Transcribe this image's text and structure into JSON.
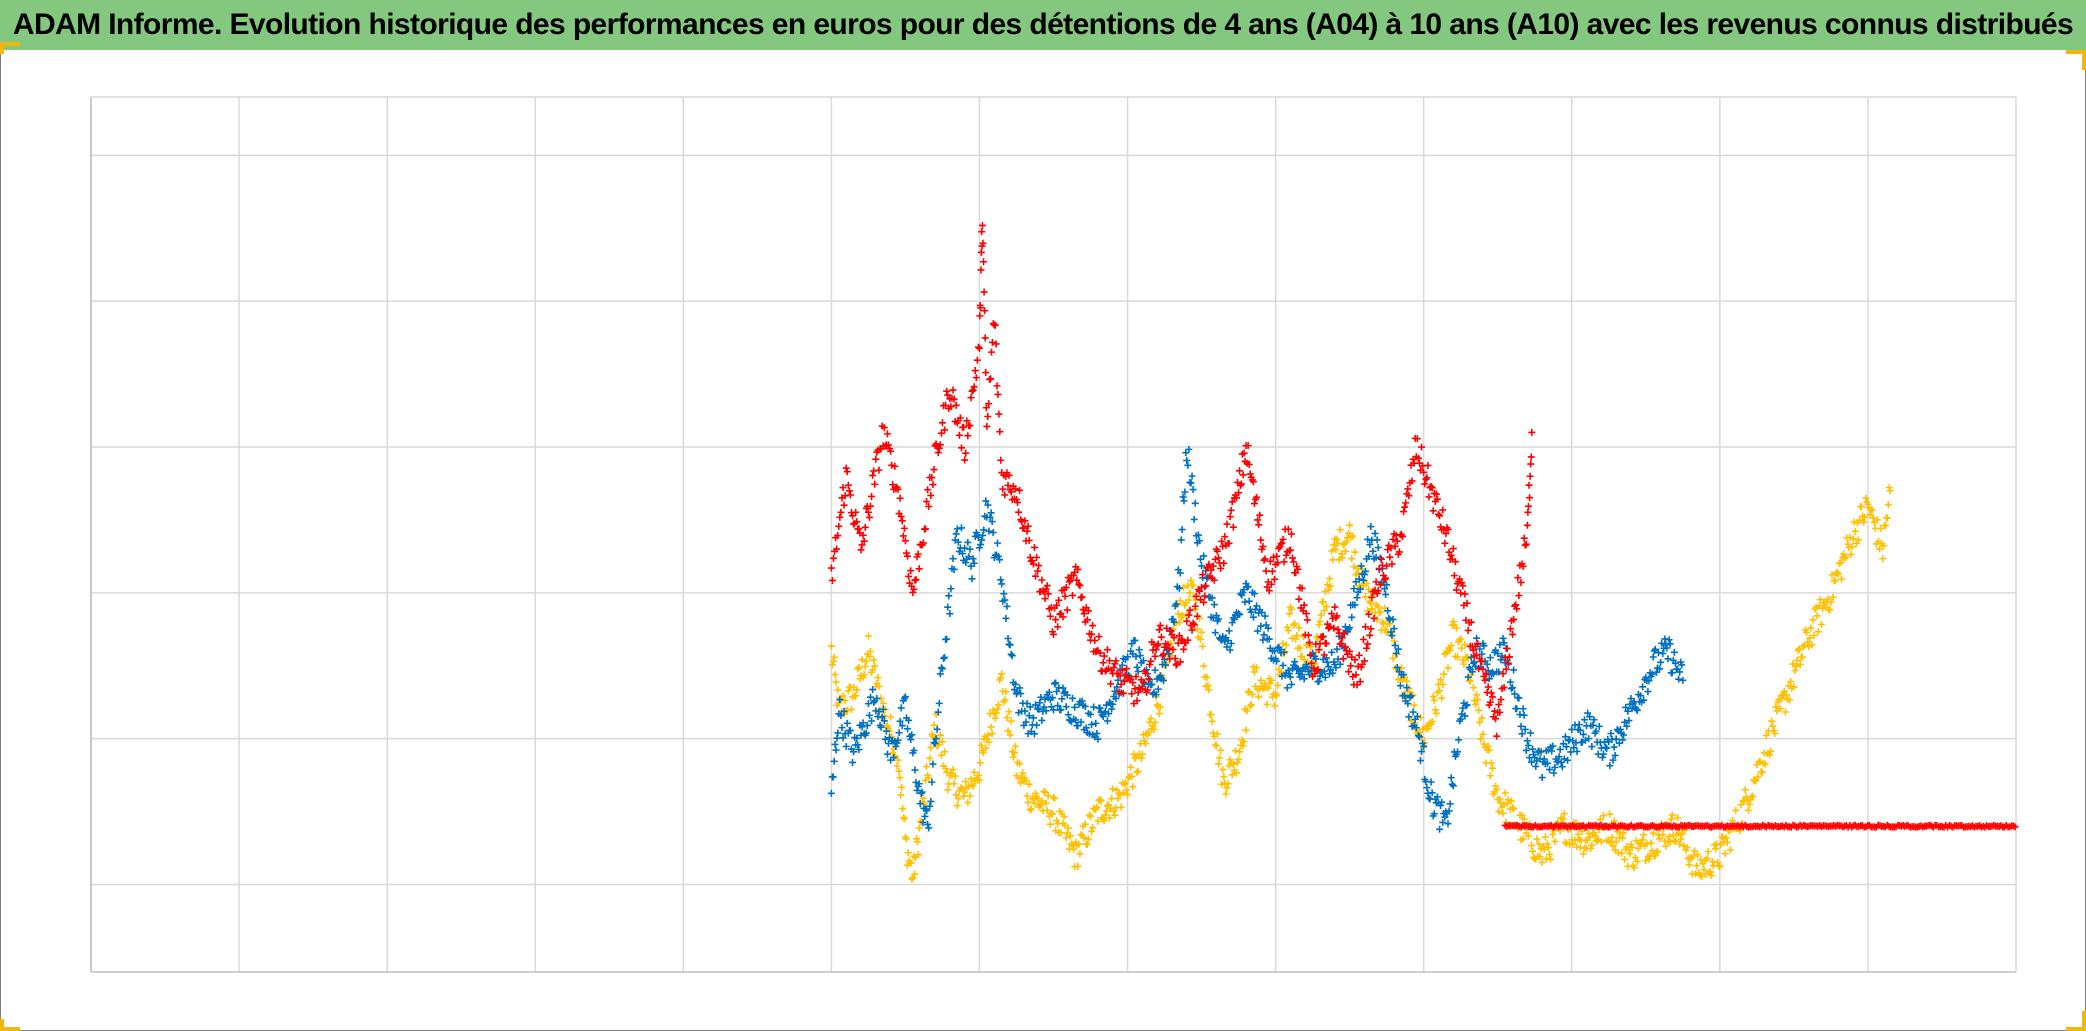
{
  "title": "ADAM Informe. Evolution historique des performances en euros pour des détentions de 4 ans (A04) à 10 ans (A10) avec les revenus connus distribués",
  "colors": {
    "title_bg": "#84c77f",
    "accent_corner": "#f2b70f",
    "grid": "#d9d9d9",
    "axis": "#bfbfbf"
  },
  "chart_data": {
    "type": "scatter",
    "marker": "plus",
    "grid": true,
    "legend": "none",
    "x_gridlines": 13,
    "y_gridlines": [
      0,
      1,
      2,
      3,
      4,
      5
    ],
    "xlim": [
      0,
      13
    ],
    "ylim": [
      -0.6,
      5.4
    ],
    "series": [
      {
        "color": "#ff0000",
        "points": [
          [
            5.0,
            2.1
          ],
          [
            5.1,
            2.8
          ],
          [
            5.2,
            2.3
          ],
          [
            5.35,
            3.1
          ],
          [
            5.45,
            2.7
          ],
          [
            5.55,
            2.0
          ],
          [
            5.7,
            2.9
          ],
          [
            5.8,
            3.4
          ],
          [
            5.9,
            3.0
          ],
          [
            6.0,
            3.7
          ],
          [
            6.02,
            4.6
          ],
          [
            6.05,
            3.1
          ],
          [
            6.1,
            3.9
          ],
          [
            6.15,
            2.8
          ],
          [
            6.25,
            2.7
          ],
          [
            6.35,
            2.3
          ],
          [
            6.5,
            1.8
          ],
          [
            6.65,
            2.1
          ],
          [
            6.8,
            1.6
          ],
          [
            6.95,
            1.4
          ],
          [
            7.1,
            1.3
          ],
          [
            7.2,
            1.7
          ],
          [
            7.35,
            1.6
          ],
          [
            7.5,
            2.0
          ],
          [
            7.65,
            2.3
          ],
          [
            7.75,
            2.7
          ],
          [
            7.8,
            3.0
          ],
          [
            7.95,
            2.1
          ],
          [
            8.1,
            2.4
          ],
          [
            8.25,
            1.5
          ],
          [
            8.4,
            1.8
          ],
          [
            8.55,
            1.4
          ],
          [
            8.7,
            2.1
          ],
          [
            8.85,
            2.4
          ],
          [
            8.95,
            3.0
          ],
          [
            9.05,
            2.7
          ],
          [
            9.15,
            2.4
          ],
          [
            9.25,
            2.0
          ],
          [
            9.4,
            1.4
          ],
          [
            9.5,
            1.1
          ],
          [
            9.6,
            1.8
          ],
          [
            9.7,
            2.4
          ],
          [
            9.73,
            3.1
          ]
        ]
      },
      {
        "color": "#0070c0",
        "points": [
          [
            5.0,
            0.6
          ],
          [
            5.05,
            1.2
          ],
          [
            5.15,
            0.9
          ],
          [
            5.3,
            1.3
          ],
          [
            5.4,
            0.9
          ],
          [
            5.5,
            1.2
          ],
          [
            5.6,
            0.6
          ],
          [
            5.65,
            0.4
          ],
          [
            5.75,
            1.5
          ],
          [
            5.85,
            2.4
          ],
          [
            5.95,
            2.2
          ],
          [
            6.05,
            2.6
          ],
          [
            6.15,
            2.1
          ],
          [
            6.25,
            1.3
          ],
          [
            6.35,
            1.1
          ],
          [
            6.5,
            1.3
          ],
          [
            6.65,
            1.2
          ],
          [
            6.8,
            1.1
          ],
          [
            6.95,
            1.4
          ],
          [
            7.05,
            1.6
          ],
          [
            7.15,
            1.3
          ],
          [
            7.25,
            1.5
          ],
          [
            7.35,
            2.1
          ],
          [
            7.4,
            3.0
          ],
          [
            7.5,
            2.2
          ],
          [
            7.65,
            1.6
          ],
          [
            7.8,
            2.0
          ],
          [
            7.95,
            1.7
          ],
          [
            8.1,
            1.4
          ],
          [
            8.25,
            1.5
          ],
          [
            8.4,
            1.5
          ],
          [
            8.55,
            2.0
          ],
          [
            8.65,
            2.4
          ],
          [
            8.75,
            2.0
          ],
          [
            8.85,
            1.4
          ],
          [
            8.95,
            1.1
          ],
          [
            9.05,
            0.6
          ],
          [
            9.15,
            0.4
          ],
          [
            9.25,
            1.1
          ],
          [
            9.35,
            1.6
          ],
          [
            9.45,
            1.5
          ],
          [
            9.55,
            1.6
          ],
          [
            9.7,
            1.0
          ],
          [
            9.8,
            0.8
          ],
          [
            9.95,
            0.9
          ],
          [
            10.1,
            1.1
          ],
          [
            10.25,
            0.9
          ],
          [
            10.4,
            1.2
          ],
          [
            10.55,
            1.5
          ],
          [
            10.65,
            1.6
          ],
          [
            10.75,
            1.4
          ]
        ]
      },
      {
        "color": "#ffc000",
        "points": [
          [
            5.0,
            1.6
          ],
          [
            5.05,
            1.2
          ],
          [
            5.15,
            1.3
          ],
          [
            5.25,
            1.6
          ],
          [
            5.35,
            1.2
          ],
          [
            5.45,
            0.9
          ],
          [
            5.5,
            0.3
          ],
          [
            5.55,
            0.05
          ],
          [
            5.6,
            0.4
          ],
          [
            5.7,
            1.1
          ],
          [
            5.8,
            0.7
          ],
          [
            5.9,
            0.6
          ],
          [
            6.0,
            0.8
          ],
          [
            6.05,
            1.0
          ],
          [
            6.15,
            1.4
          ],
          [
            6.25,
            0.8
          ],
          [
            6.35,
            0.6
          ],
          [
            6.5,
            0.5
          ],
          [
            6.65,
            0.2
          ],
          [
            6.8,
            0.5
          ],
          [
            6.95,
            0.6
          ],
          [
            7.1,
            0.9
          ],
          [
            7.25,
            1.4
          ],
          [
            7.35,
            1.9
          ],
          [
            7.45,
            2.0
          ],
          [
            7.55,
            1.3
          ],
          [
            7.65,
            0.7
          ],
          [
            7.75,
            0.9
          ],
          [
            7.85,
            1.4
          ],
          [
            8.0,
            1.3
          ],
          [
            8.1,
            1.8
          ],
          [
            8.25,
            1.5
          ],
          [
            8.4,
            2.3
          ],
          [
            8.5,
            2.4
          ],
          [
            8.6,
            2.0
          ],
          [
            8.75,
            1.8
          ],
          [
            8.85,
            1.4
          ],
          [
            9.0,
            1.0
          ],
          [
            9.1,
            1.3
          ],
          [
            9.2,
            1.7
          ],
          [
            9.3,
            1.5
          ],
          [
            9.4,
            1.0
          ],
          [
            9.5,
            0.6
          ],
          [
            9.65,
            0.4
          ],
          [
            9.8,
            0.2
          ],
          [
            9.95,
            0.4
          ],
          [
            10.1,
            0.3
          ],
          [
            10.25,
            0.4
          ],
          [
            10.4,
            0.2
          ],
          [
            10.55,
            0.3
          ],
          [
            10.7,
            0.4
          ],
          [
            10.85,
            0.1
          ],
          [
            11.0,
            0.2
          ],
          [
            11.15,
            0.5
          ],
          [
            11.3,
            0.9
          ],
          [
            11.45,
            1.3
          ],
          [
            11.6,
            1.7
          ],
          [
            11.75,
            2.0
          ],
          [
            11.9,
            2.4
          ],
          [
            12.0,
            2.6
          ],
          [
            12.1,
            2.3
          ],
          [
            12.15,
            2.7
          ]
        ]
      },
      {
        "color": "#ff0000",
        "points": [
          [
            9.55,
            0.4
          ],
          [
            13.0,
            0.4
          ]
        ]
      }
    ]
  }
}
